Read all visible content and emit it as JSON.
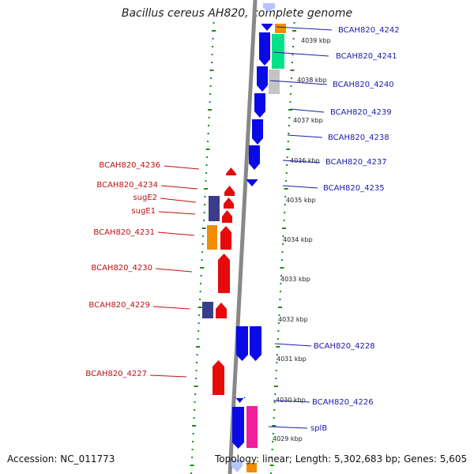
{
  "title": "Bacillus cereus AH820, complete genome",
  "footer": {
    "accession": "Accession: NC_011773",
    "summary": "Topology: linear; Length: 5,302,683 bp; Genes: 5,605"
  },
  "colors": {
    "backbone": "#888888",
    "forward_gene": "#0a0ae6",
    "reverse_gene": "#e60a0a",
    "forward_label": "#1a1ab0",
    "reverse_label": "#c01010",
    "tick_dots": "#1a8a1a",
    "orange": "#f28c00",
    "green": "#00e28a",
    "gray": "#c4c4c4",
    "purple": "#3c3c8c",
    "magenta": "#f0209a"
  },
  "kbp_scale": [
    "4039 kbp",
    "4038 kbp",
    "4037 kbp",
    "4036 kbp",
    "4035 kbp",
    "4034 kbp",
    "4033 kbp",
    "4032 kbp",
    "4031 kbp",
    "4030 kbp",
    "4029 kbp"
  ],
  "forward_labels": [
    "BCAH820_4242",
    "BCAH820_4241",
    "BCAH820_4240",
    "BCAH820_4239",
    "BCAH820_4238",
    "BCAH820_4237",
    "BCAH820_4235",
    "BCAH820_4228",
    "BCAH820_4226",
    "splB"
  ],
  "reverse_labels": [
    "BCAH820_4236",
    "BCAH820_4234",
    "sugE2",
    "sugE1",
    "BCAH820_4231",
    "BCAH820_4230",
    "BCAH820_4229",
    "BCAH820_4227"
  ]
}
